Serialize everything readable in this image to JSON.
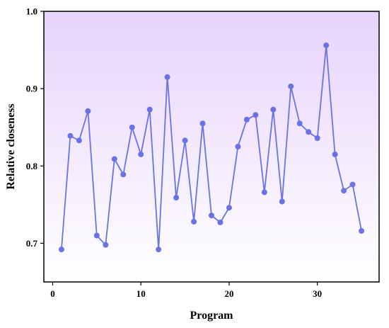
{
  "chart_data": {
    "type": "line",
    "xlabel": "Program",
    "ylabel": "Relative closeness",
    "xlim": [
      -1,
      37
    ],
    "ylim": [
      0.65,
      1.0
    ],
    "xticks": [
      0,
      10,
      20,
      30
    ],
    "xtick_labels": [
      "0",
      "10",
      "20",
      "30"
    ],
    "yticks": [
      0.7,
      0.8,
      0.9,
      1.0
    ],
    "ytick_labels": [
      "0.7",
      "0.8",
      "0.9",
      "1.0"
    ],
    "grid": false,
    "background_gradient": [
      "#e7d3fb",
      "#ffffff"
    ],
    "line_color": "#6b72e6",
    "series": [
      {
        "x": [
          1,
          2,
          3,
          4,
          5,
          6,
          7,
          8,
          9,
          10,
          11,
          12,
          13,
          14,
          15,
          16,
          17,
          18,
          19,
          20,
          21,
          22,
          23,
          24,
          25,
          26,
          27,
          28,
          29,
          30,
          31,
          32,
          33,
          34,
          35
        ],
        "values": [
          0.692,
          0.839,
          0.833,
          0.871,
          0.71,
          0.698,
          0.809,
          0.789,
          0.85,
          0.815,
          0.873,
          0.692,
          0.915,
          0.759,
          0.833,
          0.728,
          0.855,
          0.736,
          0.727,
          0.746,
          0.825,
          0.86,
          0.866,
          0.766,
          0.873,
          0.754,
          0.903,
          0.855,
          0.844,
          0.836,
          0.956,
          0.815,
          0.768,
          0.776,
          0.716
        ]
      }
    ]
  }
}
